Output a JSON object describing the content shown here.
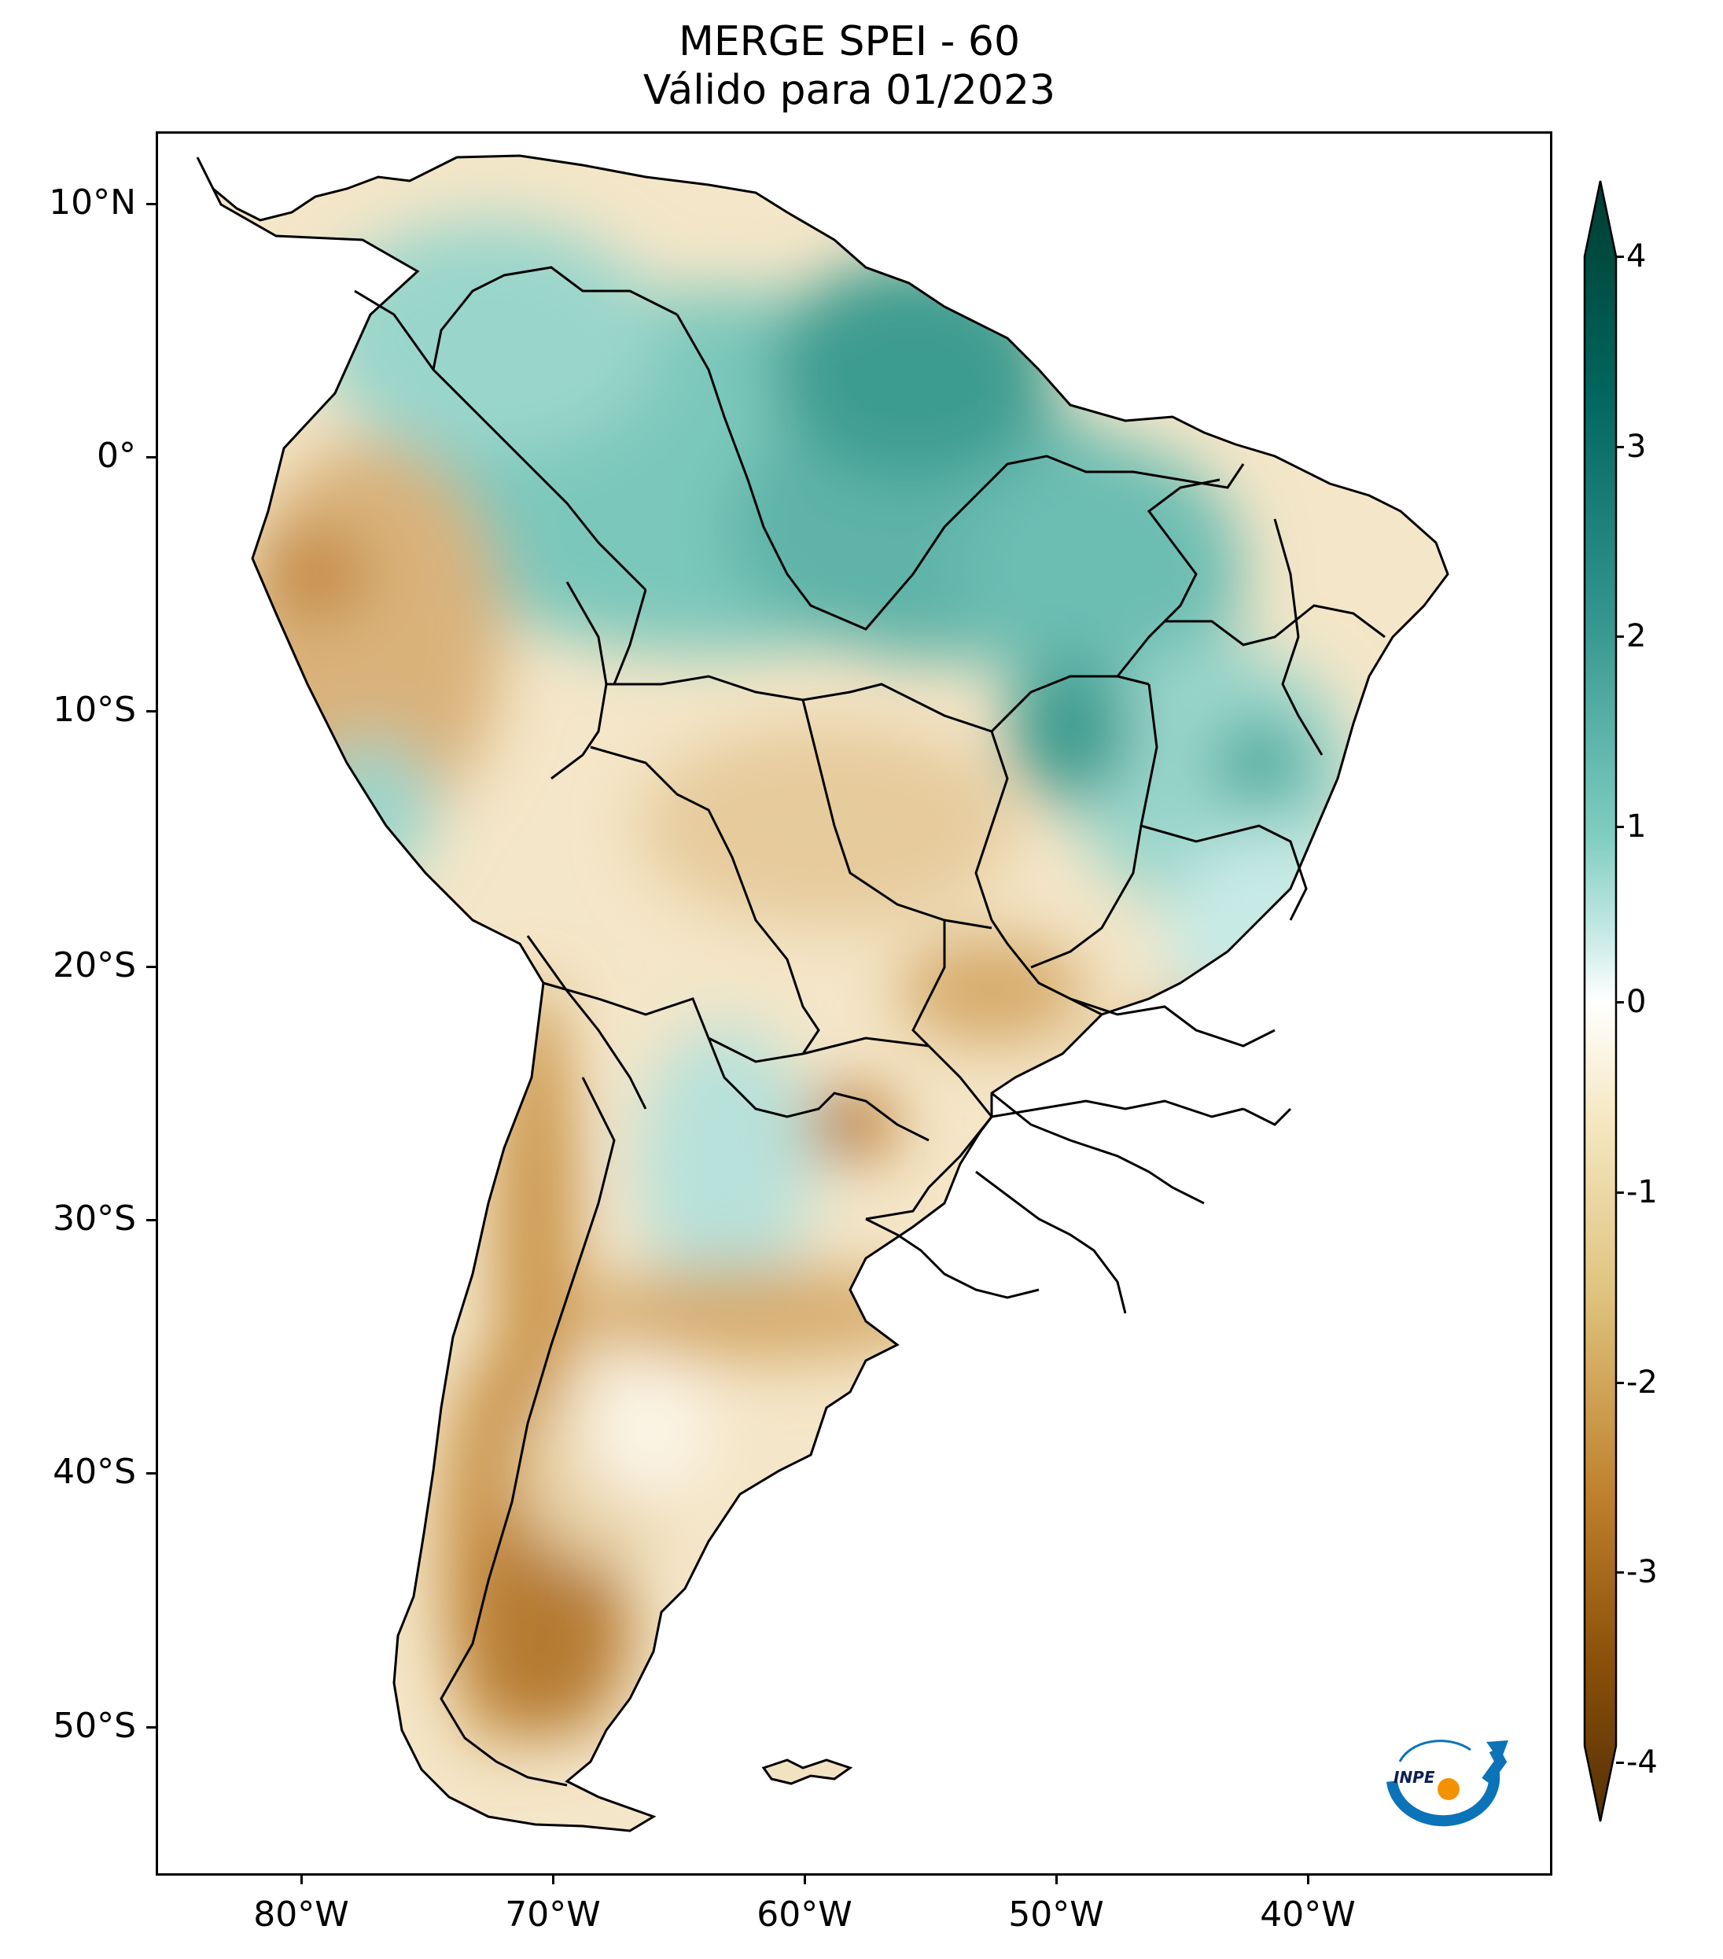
{
  "title": {
    "line1": "MERGE   SPEI - 60",
    "line2": "Válido para 01/2023"
  },
  "axes": {
    "lat_labels": [
      "10°N",
      "0°",
      "10°S",
      "20°S",
      "30°S",
      "40°S",
      "50°S"
    ],
    "lon_labels": [
      "80°W",
      "70°W",
      "60°W",
      "50°W",
      "40°W"
    ]
  },
  "colorbar": {
    "labels": [
      "4",
      "3",
      "2",
      "1",
      "0",
      "-1",
      "-2",
      "-3",
      "-4"
    ],
    "range": [
      -4,
      4
    ],
    "extend": "both",
    "colors": {
      "very_dry": "#543005",
      "dry": "#bf812d",
      "slightly_dry": "#f6e8c3",
      "neutral": "#ffffff",
      "slightly_wet": "#c7eae5",
      "wet": "#35978f",
      "very_wet": "#003c30"
    }
  },
  "logo": {
    "text": "INPE",
    "colors": {
      "arc": "#0b73b8",
      "dot": "#f39200"
    }
  }
}
